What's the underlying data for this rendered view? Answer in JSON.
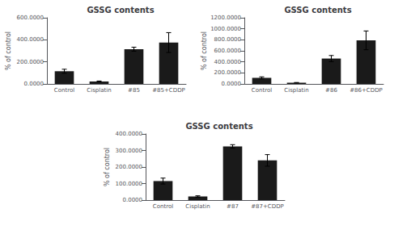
{
  "chart_data": [
    {
      "type": "bar",
      "title": "GSSG contents",
      "ylabel": "% of control",
      "categories": [
        "Control",
        "Cisplatin",
        "#85",
        "#85+CDDP"
      ],
      "values": [
        115,
        22,
        315,
        375
      ],
      "errors": [
        18,
        4,
        18,
        90
      ],
      "color": "#1a1a1a",
      "grid": false,
      "ylim": [
        0,
        600
      ],
      "yticks": [
        {
          "value": 0,
          "label": "0.0000"
        },
        {
          "value": 200,
          "label": "200.0000"
        },
        {
          "value": 400,
          "label": "400.0000"
        },
        {
          "value": 600,
          "label": "600.0000"
        }
      ]
    },
    {
      "type": "bar",
      "title": "GSSG contents",
      "ylabel": "% of control",
      "categories": [
        "Control",
        "Cisplatin",
        "#86",
        "#86+CDDP"
      ],
      "values": [
        110,
        22,
        460,
        790
      ],
      "errors": [
        18,
        4,
        55,
        170
      ],
      "color": "#1a1a1a",
      "grid": false,
      "ylim": [
        0,
        1200
      ],
      "yticks": [
        {
          "value": 0,
          "label": "0.0000"
        },
        {
          "value": 200,
          "label": "200.0000"
        },
        {
          "value": 400,
          "label": "400.0000"
        },
        {
          "value": 600,
          "label": "600.0000"
        },
        {
          "value": 800,
          "label": "800.0000"
        },
        {
          "value": 1000,
          "label": "1000.0000"
        },
        {
          "value": 1200,
          "label": "1200.0000"
        }
      ]
    },
    {
      "type": "bar",
      "title": "GSSG contents",
      "ylabel": "% of control",
      "categories": [
        "Control",
        "Cisplatin",
        "#87",
        "#87+CDDP"
      ],
      "values": [
        115,
        22,
        325,
        240
      ],
      "errors": [
        18,
        4,
        10,
        35
      ],
      "color": "#1a1a1a",
      "grid": false,
      "ylim": [
        0,
        400
      ],
      "yticks": [
        {
          "value": 0,
          "label": "0.0000"
        },
        {
          "value": 100,
          "label": "100.0000"
        },
        {
          "value": 200,
          "label": "200.0000"
        },
        {
          "value": 300,
          "label": "300.0000"
        },
        {
          "value": 400,
          "label": "400.0000"
        }
      ]
    }
  ]
}
